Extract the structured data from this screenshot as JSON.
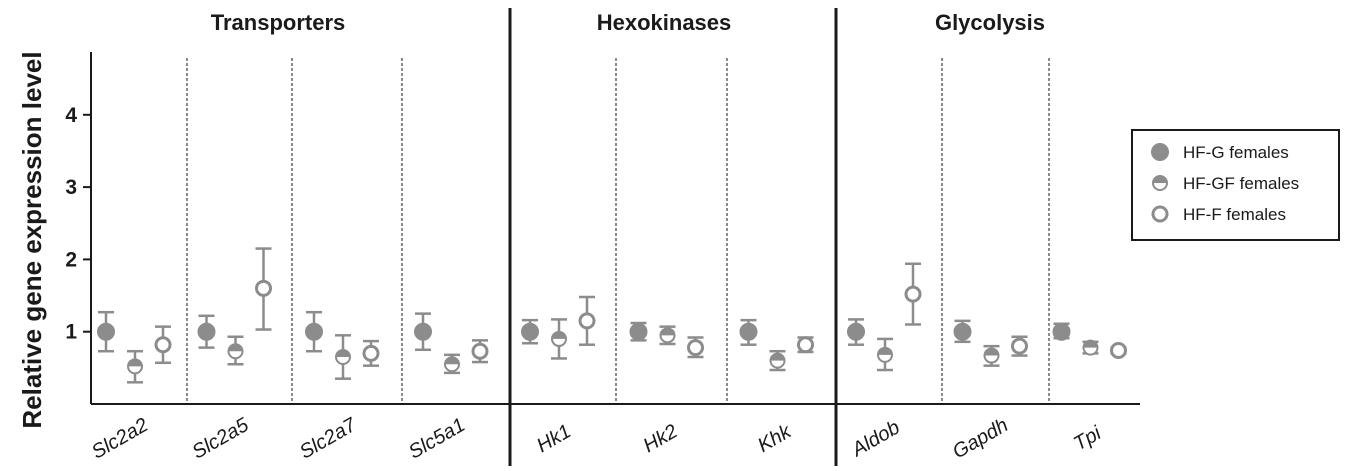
{
  "chart_data": {
    "type": "scatter",
    "ylabel": "Relative gene expression level",
    "xlabel": "",
    "ylim": [
      0,
      4.5
    ],
    "yticks": [
      1,
      2,
      3,
      4
    ],
    "groups": [
      {
        "title": "Transporters",
        "genes": [
          "Slc2a2",
          "Slc2a5",
          "Slc2a7",
          "Slc5a1"
        ]
      },
      {
        "title": "Hexokinases",
        "genes": [
          "Hk1",
          "Hk2",
          "Khk"
        ]
      },
      {
        "title": "Glycolysis",
        "genes": [
          "Aldob",
          "Gapdh",
          "Tpi"
        ]
      }
    ],
    "categories": [
      "Slc2a2",
      "Slc2a5",
      "Slc2a7",
      "Slc5a1",
      "Hk1",
      "Hk2",
      "Khk",
      "Aldob",
      "Gapdh",
      "Tpi"
    ],
    "series": [
      {
        "name": "HF-G females",
        "marker": "filled",
        "mean": [
          1.0,
          1.0,
          1.0,
          1.0,
          1.0,
          1.0,
          1.0,
          1.0,
          1.0,
          1.0
        ],
        "lower": [
          0.73,
          0.78,
          0.73,
          0.75,
          0.84,
          0.88,
          0.82,
          0.82,
          0.86,
          0.91
        ],
        "upper": [
          1.27,
          1.22,
          1.27,
          1.25,
          1.16,
          1.12,
          1.16,
          1.17,
          1.15,
          1.11
        ]
      },
      {
        "name": "HF-GF females",
        "marker": "half",
        "mean": [
          0.52,
          0.73,
          0.65,
          0.55,
          0.9,
          0.95,
          0.6,
          0.68,
          0.67,
          0.78
        ],
        "lower": [
          0.3,
          0.55,
          0.35,
          0.43,
          0.63,
          0.83,
          0.47,
          0.47,
          0.53,
          0.7
        ],
        "upper": [
          0.73,
          0.93,
          0.95,
          0.68,
          1.17,
          1.07,
          0.73,
          0.9,
          0.8,
          0.86
        ]
      },
      {
        "name": "HF-F females",
        "marker": "open",
        "mean": [
          0.82,
          1.6,
          0.7,
          0.73,
          1.15,
          0.78,
          0.82,
          1.52,
          0.8,
          0.74
        ],
        "lower": [
          0.57,
          1.03,
          0.53,
          0.58,
          0.82,
          0.65,
          0.72,
          1.1,
          0.67,
          0.7
        ],
        "upper": [
          1.07,
          2.15,
          0.87,
          0.88,
          1.48,
          0.92,
          0.92,
          1.94,
          0.93,
          0.78
        ]
      }
    ],
    "legend_position": "right",
    "colors": {
      "marker": "#8c8c8c",
      "axis": "#1a1a1a"
    }
  }
}
